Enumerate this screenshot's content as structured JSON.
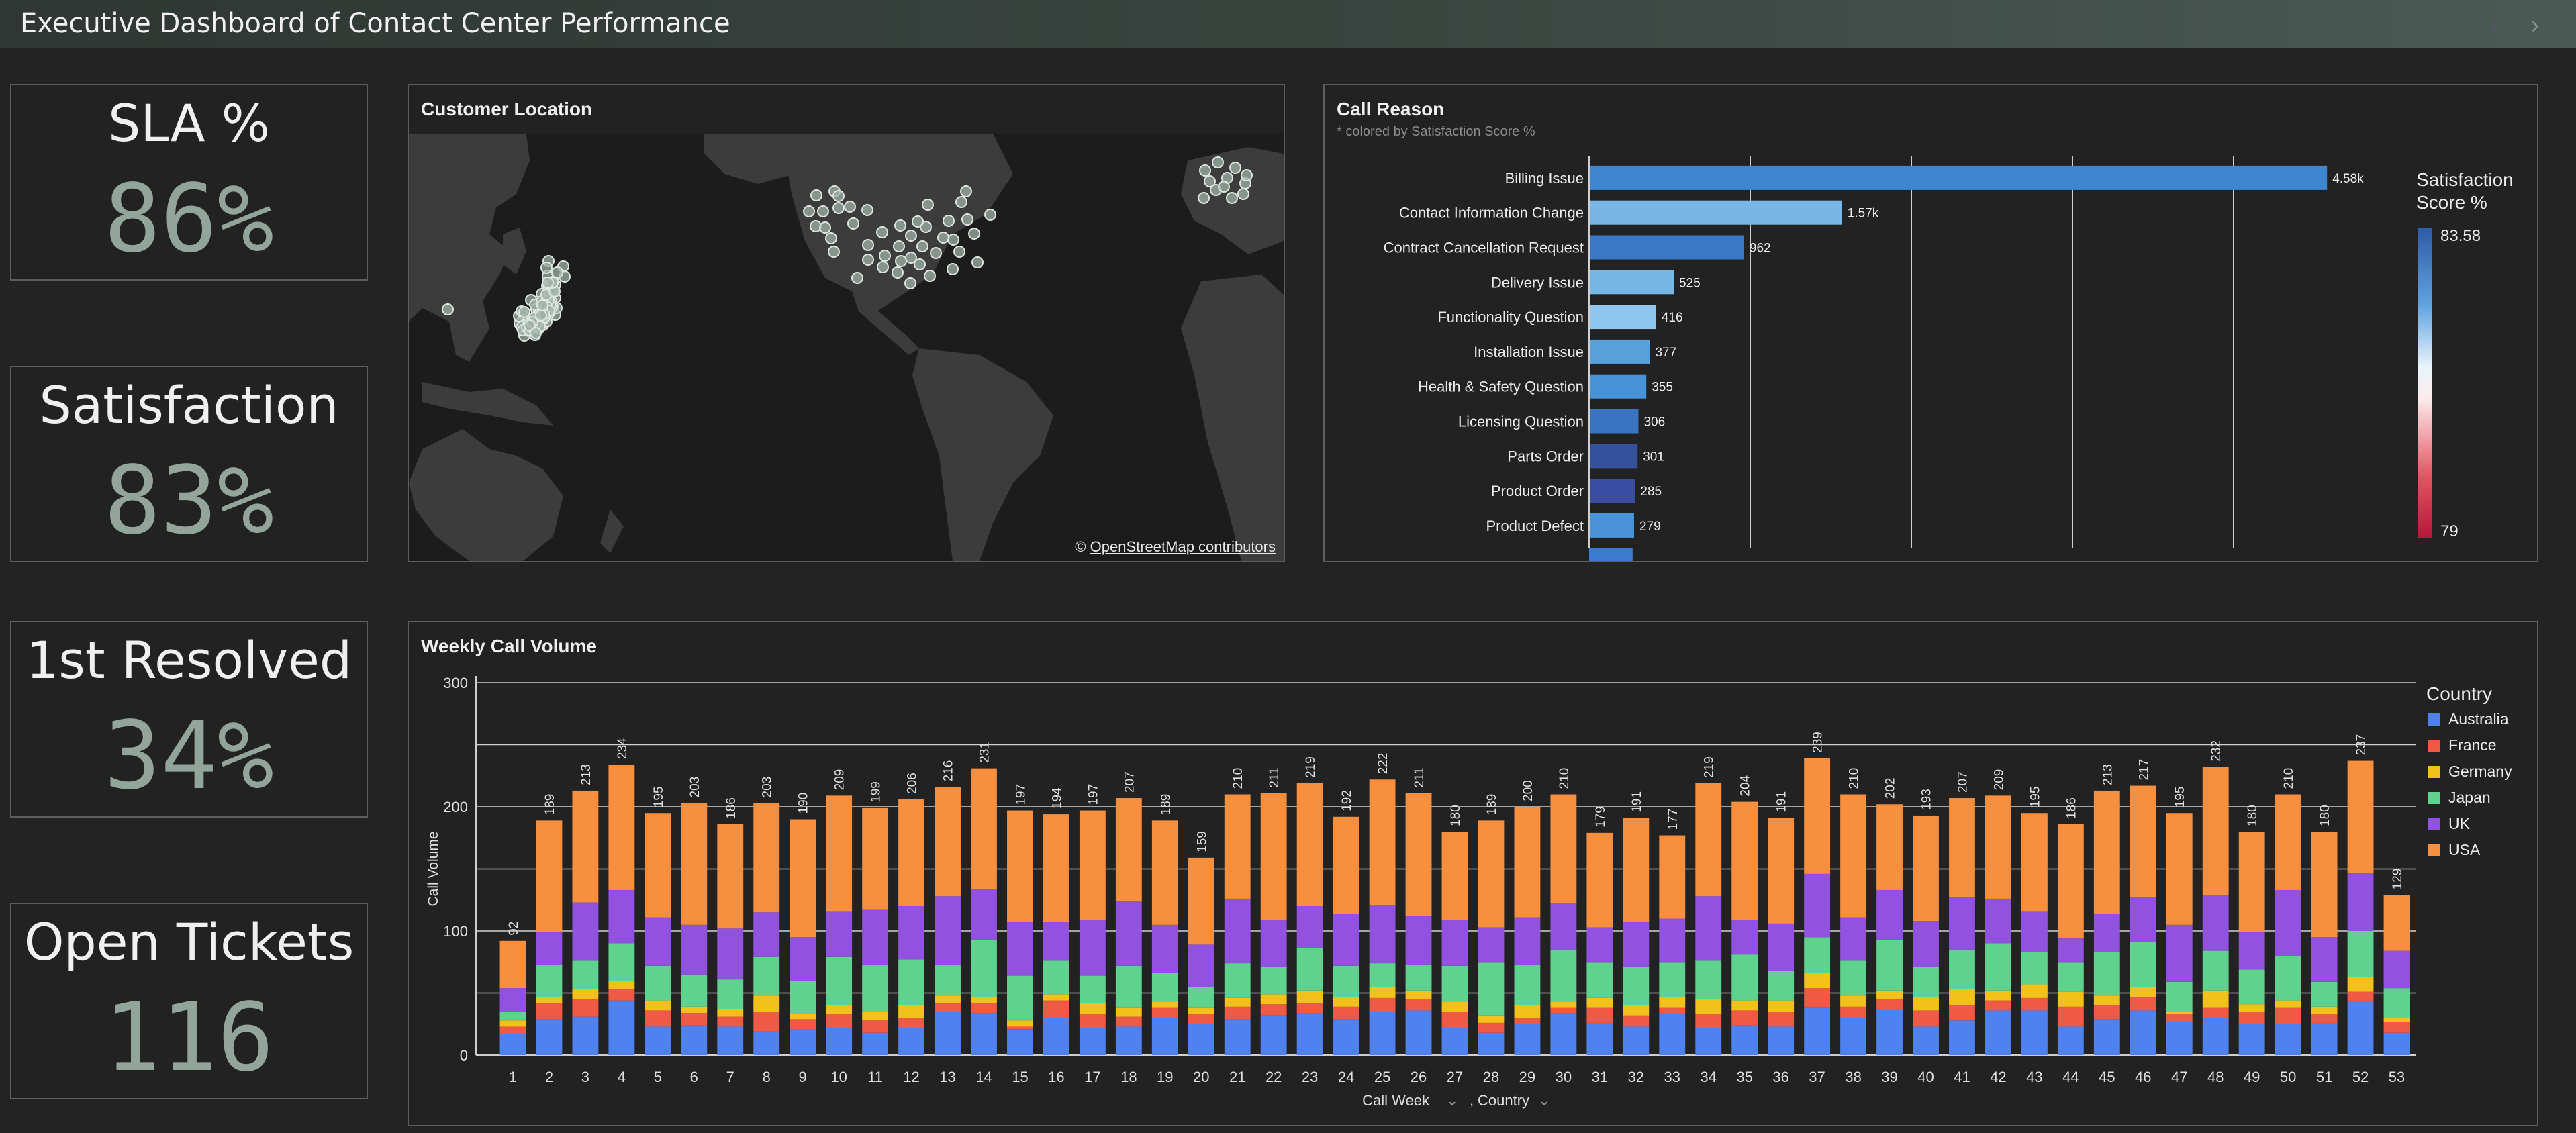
{
  "header": {
    "title": "Executive Dashboard of Contact Center Performance"
  },
  "kpis": [
    {
      "label": "SLA %",
      "value": "86%"
    },
    {
      "label": "Satisfaction",
      "value": "83%"
    },
    {
      "label": "1st Resolved",
      "value": "34%"
    },
    {
      "label": "Open Tickets",
      "value": "116"
    }
  ],
  "map": {
    "title": "Customer Location",
    "attribution_prefix": "© ",
    "attribution_link": "OpenStreetMap contributors"
  },
  "call_reason": {
    "title": "Call Reason",
    "subtitle": "* colored by Satisfaction Score %",
    "legend_title_line1": "Satisfaction",
    "legend_title_line2": "Score %",
    "legend_max": "83.58",
    "legend_min": "79",
    "colors": [
      "#3e86cf",
      "#79b6e6",
      "#3878c4",
      "#78b6e6",
      "#8fc6ef",
      "#58a0dc",
      "#4893d6",
      "#3a74c0",
      "#35519e",
      "#3b4da2",
      "#4a93d9",
      "#3c7cd0"
    ]
  },
  "weekly": {
    "title": "Weekly Call Volume",
    "ylabel": "Call Volume",
    "xlabel": "Call Week",
    "xlabel2": "Country",
    "legend_title": "Country",
    "countries": [
      "Australia",
      "France",
      "Germany",
      "Japan",
      "UK",
      "USA"
    ],
    "colors": [
      "#4f82ee",
      "#ee5a46",
      "#f3c11c",
      "#5fd28e",
      "#9152e0",
      "#f88f3e"
    ]
  },
  "chart_data": [
    {
      "type": "bar",
      "orientation": "horizontal",
      "title": "Call Reason",
      "subtitle": "* colored by Satisfaction Score %",
      "categories": [
        "Billing Issue",
        "Contact Information Change",
        "Contract Cancellation Request",
        "Delivery Issue",
        "Functionality Question",
        "Installation Issue",
        "Health & Safety Question",
        "Licensing Question",
        "Parts Order",
        "Product Order",
        "Product Defect",
        ""
      ],
      "values": [
        4580,
        1570,
        962,
        525,
        416,
        377,
        355,
        306,
        301,
        285,
        279,
        270
      ],
      "value_labels": [
        "4.58k",
        "1.57k",
        "962",
        "525",
        "416",
        "377",
        "355",
        "306",
        "301",
        "285",
        "279",
        ""
      ],
      "xlim": [
        0,
        5000
      ],
      "grid": true,
      "legend": "right"
    },
    {
      "type": "bar",
      "stacked": true,
      "title": "Weekly Call Volume",
      "xlabel": "Call Week",
      "ylabel": "Call Volume",
      "ylim": [
        0,
        300
      ],
      "yticks": [
        0,
        100,
        200,
        300
      ],
      "grid": true,
      "legend": "right",
      "categories": [
        "1",
        "2",
        "3",
        "4",
        "5",
        "6",
        "7",
        "8",
        "9",
        "10",
        "11",
        "12",
        "13",
        "14",
        "15",
        "16",
        "17",
        "18",
        "19",
        "20",
        "21",
        "22",
        "23",
        "24",
        "25",
        "26",
        "27",
        "28",
        "29",
        "30",
        "31",
        "32",
        "33",
        "34",
        "35",
        "36",
        "37",
        "38",
        "39",
        "40",
        "41",
        "42",
        "43",
        "44",
        "45",
        "46",
        "47",
        "48",
        "49",
        "50",
        "51",
        "52",
        "53"
      ],
      "totals": [
        92,
        189,
        213,
        234,
        195,
        203,
        186,
        203,
        190,
        209,
        199,
        206,
        216,
        231,
        197,
        194,
        197,
        207,
        189,
        159,
        210,
        211,
        219,
        192,
        222,
        211,
        180,
        189,
        200,
        210,
        179,
        191,
        177,
        219,
        204,
        191,
        239,
        210,
        202,
        193,
        207,
        209,
        195,
        186,
        213,
        217,
        195,
        232,
        180,
        210,
        180,
        237,
        129
      ],
      "series": [
        {
          "name": "Australia",
          "values": [
            17,
            29,
            31,
            44,
            23,
            24,
            23,
            19,
            21,
            22,
            18,
            22,
            35,
            34,
            21,
            30,
            22,
            23,
            30,
            25,
            29,
            32,
            34,
            29,
            35,
            36,
            22,
            18,
            25,
            34,
            26,
            23,
            33,
            22,
            24,
            23,
            38,
            30,
            37,
            23,
            28,
            36,
            36,
            23,
            29,
            36,
            27,
            30,
            25,
            25,
            26,
            43,
            18
          ]
        },
        {
          "name": "France",
          "values": [
            6,
            13,
            14,
            9,
            13,
            10,
            8,
            16,
            8,
            11,
            10,
            8,
            7,
            8,
            2,
            14,
            11,
            8,
            8,
            8,
            10,
            9,
            8,
            10,
            11,
            9,
            13,
            8,
            5,
            4,
            12,
            9,
            5,
            11,
            12,
            12,
            16,
            9,
            8,
            13,
            12,
            8,
            10,
            16,
            11,
            11,
            6,
            8,
            10,
            13,
            7,
            8,
            9
          ]
        },
        {
          "name": "Germany",
          "values": [
            5,
            5,
            8,
            7,
            8,
            5,
            6,
            13,
            4,
            7,
            7,
            10,
            6,
            5,
            5,
            5,
            9,
            7,
            5,
            5,
            7,
            8,
            10,
            8,
            9,
            7,
            8,
            6,
            10,
            5,
            8,
            8,
            9,
            12,
            8,
            9,
            12,
            9,
            7,
            11,
            13,
            8,
            11,
            12,
            8,
            8,
            2,
            14,
            6,
            6,
            6,
            12,
            3
          ]
        },
        {
          "name": "Japan",
          "values": [
            7,
            26,
            23,
            30,
            28,
            26,
            24,
            31,
            27,
            39,
            38,
            37,
            25,
            46,
            36,
            27,
            22,
            34,
            23,
            17,
            28,
            22,
            34,
            25,
            19,
            21,
            29,
            43,
            33,
            42,
            29,
            31,
            28,
            31,
            37,
            24,
            29,
            28,
            41,
            24,
            32,
            38,
            26,
            24,
            35,
            36,
            24,
            32,
            28,
            36,
            20,
            37,
            24
          ]
        },
        {
          "name": "UK",
          "values": [
            19,
            26,
            47,
            43,
            39,
            40,
            41,
            36,
            35,
            37,
            44,
            43,
            55,
            41,
            43,
            31,
            45,
            52,
            39,
            34,
            52,
            38,
            34,
            42,
            47,
            39,
            37,
            28,
            38,
            37,
            28,
            36,
            35,
            52,
            28,
            38,
            51,
            35,
            40,
            37,
            42,
            36,
            33,
            19,
            31,
            36,
            46,
            45,
            30,
            53,
            36,
            47,
            30
          ]
        },
        {
          "name": "USA",
          "values": [
            38,
            90,
            90,
            101,
            84,
            98,
            84,
            88,
            95,
            93,
            82,
            86,
            88,
            97,
            90,
            87,
            88,
            83,
            84,
            70,
            84,
            102,
            99,
            78,
            101,
            99,
            71,
            86,
            89,
            88,
            76,
            84,
            67,
            91,
            95,
            85,
            93,
            99,
            69,
            85,
            80,
            83,
            79,
            92,
            99,
            90,
            90,
            103,
            81,
            77,
            85,
            90,
            45
          ]
        }
      ]
    }
  ]
}
